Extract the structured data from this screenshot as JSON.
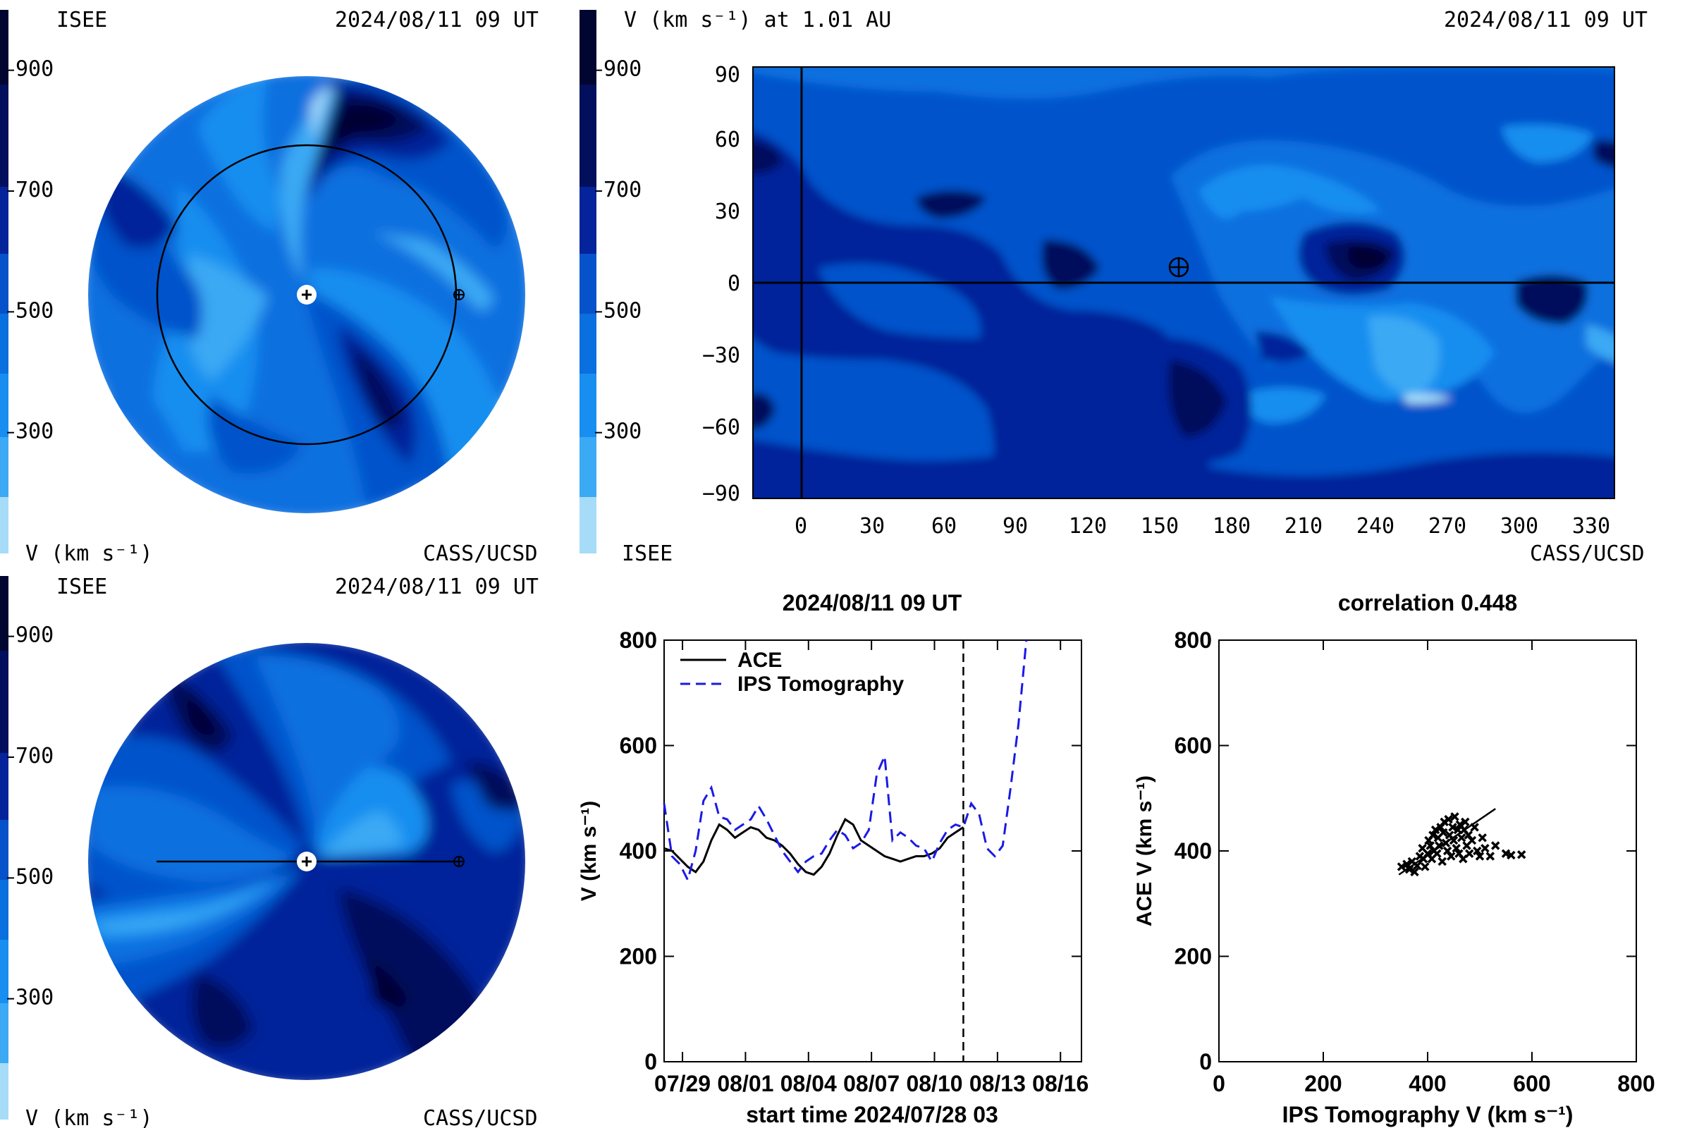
{
  "colors": {
    "levels": [
      "#a6dcf8",
      "#3ba9f4",
      "#178ef0",
      "#0a6fdf",
      "#0652cb",
      "#05239a",
      "#020f5c",
      "#010630"
    ],
    "ace": "#000000",
    "ips": "#1a1ae6"
  },
  "colorbar": {
    "ticks": [
      {
        "v": 300,
        "label": "300"
      },
      {
        "v": 500,
        "label": "500"
      },
      {
        "v": 700,
        "label": "700"
      },
      {
        "v": 900,
        "label": "900"
      }
    ]
  },
  "panel_top_left": {
    "org_left": "ISEE",
    "datetime": "2024/08/11 09 UT",
    "colorbar_label": "V (km s⁻¹)",
    "credit": "CASS/UCSD"
  },
  "panel_bottom_left": {
    "org_left": "ISEE",
    "datetime": "2024/08/11 09 UT",
    "colorbar_label": "V (km s⁻¹)",
    "credit": "CASS/UCSD"
  },
  "panel_map": {
    "title": "V (km s⁻¹) at 1.01 AU",
    "datetime": "2024/08/11 09 UT",
    "org_left": "ISEE",
    "credit": "CASS/UCSD"
  },
  "chart_data": [
    {
      "type": "line",
      "title": "2024/08/11 09 UT",
      "xlabel": "start time 2024/07/28 03",
      "ylabel": "V (km s⁻¹)",
      "xlim": [
        "2024/07/28 03",
        "2024/08/17"
      ],
      "ylim": [
        0,
        800
      ],
      "xticks": [
        "07/29",
        "08/01",
        "08/04",
        "08/07",
        "08/10",
        "08/13",
        "08/16"
      ],
      "yticks": [
        0,
        200,
        400,
        600,
        800
      ],
      "vline": "2024/08/11 09",
      "series": [
        {
          "name": "ACE",
          "style": "solid",
          "points": [
            [
              "2024/07/28 03",
              405
            ],
            [
              "2024/07/28 12",
              400
            ],
            [
              "2024/07/28 21",
              385
            ],
            [
              "2024/07/29 06",
              370
            ],
            [
              "2024/07/29 15",
              360
            ],
            [
              "2024/07/30 00",
              380
            ],
            [
              "2024/07/30 09",
              420
            ],
            [
              "2024/07/30 18",
              450
            ],
            [
              "2024/07/31 03",
              440
            ],
            [
              "2024/07/31 12",
              425
            ],
            [
              "2024/07/31 21",
              435
            ],
            [
              "2024/08/01 06",
              445
            ],
            [
              "2024/08/01 15",
              440
            ],
            [
              "2024/08/02 00",
              425
            ],
            [
              "2024/08/02 09",
              420
            ],
            [
              "2024/08/02 18",
              410
            ],
            [
              "2024/08/03 03",
              395
            ],
            [
              "2024/08/03 12",
              375
            ],
            [
              "2024/08/03 21",
              360
            ],
            [
              "2024/08/04 06",
              355
            ],
            [
              "2024/08/04 15",
              370
            ],
            [
              "2024/08/05 00",
              395
            ],
            [
              "2024/08/05 09",
              430
            ],
            [
              "2024/08/05 18",
              460
            ],
            [
              "2024/08/06 03",
              450
            ],
            [
              "2024/08/06 12",
              420
            ],
            [
              "2024/08/06 21",
              410
            ],
            [
              "2024/08/07 06",
              400
            ],
            [
              "2024/08/07 15",
              390
            ],
            [
              "2024/08/08 00",
              385
            ],
            [
              "2024/08/08 09",
              380
            ],
            [
              "2024/08/08 18",
              385
            ],
            [
              "2024/08/09 03",
              390
            ],
            [
              "2024/08/09 12",
              390
            ],
            [
              "2024/08/09 21",
              395
            ],
            [
              "2024/08/10 06",
              405
            ],
            [
              "2024/08/10 15",
              425
            ],
            [
              "2024/08/11 00",
              435
            ],
            [
              "2024/08/11 09",
              445
            ]
          ]
        },
        {
          "name": "IPS Tomography",
          "style": "dashed",
          "points": [
            [
              "2024/07/28 03",
              490
            ],
            [
              "2024/07/28 12",
              390
            ],
            [
              "2024/07/28 21",
              375
            ],
            [
              "2024/07/29 06",
              345
            ],
            [
              "2024/07/29 15",
              400
            ],
            [
              "2024/07/30 00",
              495
            ],
            [
              "2024/07/30 09",
              520
            ],
            [
              "2024/07/30 18",
              465
            ],
            [
              "2024/07/31 03",
              460
            ],
            [
              "2024/07/31 12",
              440
            ],
            [
              "2024/07/31 21",
              450
            ],
            [
              "2024/08/01 06",
              460
            ],
            [
              "2024/08/01 15",
              485
            ],
            [
              "2024/08/02 00",
              460
            ],
            [
              "2024/08/02 09",
              430
            ],
            [
              "2024/08/02 18",
              400
            ],
            [
              "2024/08/03 03",
              380
            ],
            [
              "2024/08/03 12",
              360
            ],
            [
              "2024/08/03 21",
              380
            ],
            [
              "2024/08/04 06",
              390
            ],
            [
              "2024/08/04 15",
              395
            ],
            [
              "2024/08/05 00",
              420
            ],
            [
              "2024/08/05 09",
              440
            ],
            [
              "2024/08/05 18",
              430
            ],
            [
              "2024/08/06 03",
              405
            ],
            [
              "2024/08/06 12",
              415
            ],
            [
              "2024/08/06 21",
              440
            ],
            [
              "2024/08/07 06",
              545
            ],
            [
              "2024/08/07 15",
              580
            ],
            [
              "2024/08/08 00",
              420
            ],
            [
              "2024/08/08 09",
              435
            ],
            [
              "2024/08/08 18",
              425
            ],
            [
              "2024/08/09 03",
              410
            ],
            [
              "2024/08/09 12",
              405
            ],
            [
              "2024/08/09 21",
              380
            ],
            [
              "2024/08/10 06",
              415
            ],
            [
              "2024/08/10 15",
              440
            ],
            [
              "2024/08/11 00",
              450
            ],
            [
              "2024/08/11 09",
              445
            ],
            [
              "2024/08/11 18",
              490
            ],
            [
              "2024/08/12 03",
              470
            ],
            [
              "2024/08/12 12",
              405
            ],
            [
              "2024/08/12 21",
              390
            ],
            [
              "2024/08/13 06",
              410
            ],
            [
              "2024/08/13 15",
              520
            ],
            [
              "2024/08/14 00",
              640
            ],
            [
              "2024/08/14 09",
              800
            ]
          ]
        }
      ]
    },
    {
      "type": "scatter",
      "title": "correlation 0.448",
      "xlabel": "IPS Tomography V (km s⁻¹)",
      "ylabel": "ACE V (km s⁻¹)",
      "xlim": [
        0,
        800
      ],
      "ylim": [
        0,
        800
      ],
      "xticks": [
        0,
        200,
        400,
        600,
        800
      ],
      "yticks": [
        0,
        200,
        400,
        600,
        800
      ],
      "fit_line": [
        [
          345,
          355
        ],
        [
          530,
          480
        ]
      ],
      "points": [
        [
          350,
          370
        ],
        [
          360,
          375
        ],
        [
          365,
          365
        ],
        [
          370,
          380
        ],
        [
          375,
          360
        ],
        [
          380,
          372
        ],
        [
          385,
          390
        ],
        [
          390,
          405
        ],
        [
          392,
          385
        ],
        [
          395,
          370
        ],
        [
          400,
          395
        ],
        [
          402,
          420
        ],
        [
          405,
          410
        ],
        [
          408,
          385
        ],
        [
          410,
          430
        ],
        [
          412,
          400
        ],
        [
          415,
          440
        ],
        [
          418,
          395
        ],
        [
          420,
          425
        ],
        [
          422,
          410
        ],
        [
          425,
          445
        ],
        [
          428,
          380
        ],
        [
          430,
          435
        ],
        [
          432,
          455
        ],
        [
          435,
          415
        ],
        [
          438,
          400
        ],
        [
          440,
          460
        ],
        [
          442,
          430
        ],
        [
          445,
          390
        ],
        [
          448,
          445
        ],
        [
          450,
          420
        ],
        [
          452,
          465
        ],
        [
          455,
          405
        ],
        [
          458,
          440
        ],
        [
          460,
          395
        ],
        [
          462,
          450
        ],
        [
          465,
          425
        ],
        [
          468,
          385
        ],
        [
          470,
          440
        ],
        [
          472,
          455
        ],
        [
          475,
          410
        ],
        [
          478,
          430
        ],
        [
          480,
          395
        ],
        [
          485,
          420
        ],
        [
          490,
          445
        ],
        [
          495,
          400
        ],
        [
          500,
          390
        ],
        [
          505,
          425
        ],
        [
          510,
          405
        ],
        [
          520,
          390
        ],
        [
          530,
          410
        ],
        [
          550,
          395
        ],
        [
          560,
          392
        ],
        [
          580,
          393
        ]
      ]
    }
  ]
}
